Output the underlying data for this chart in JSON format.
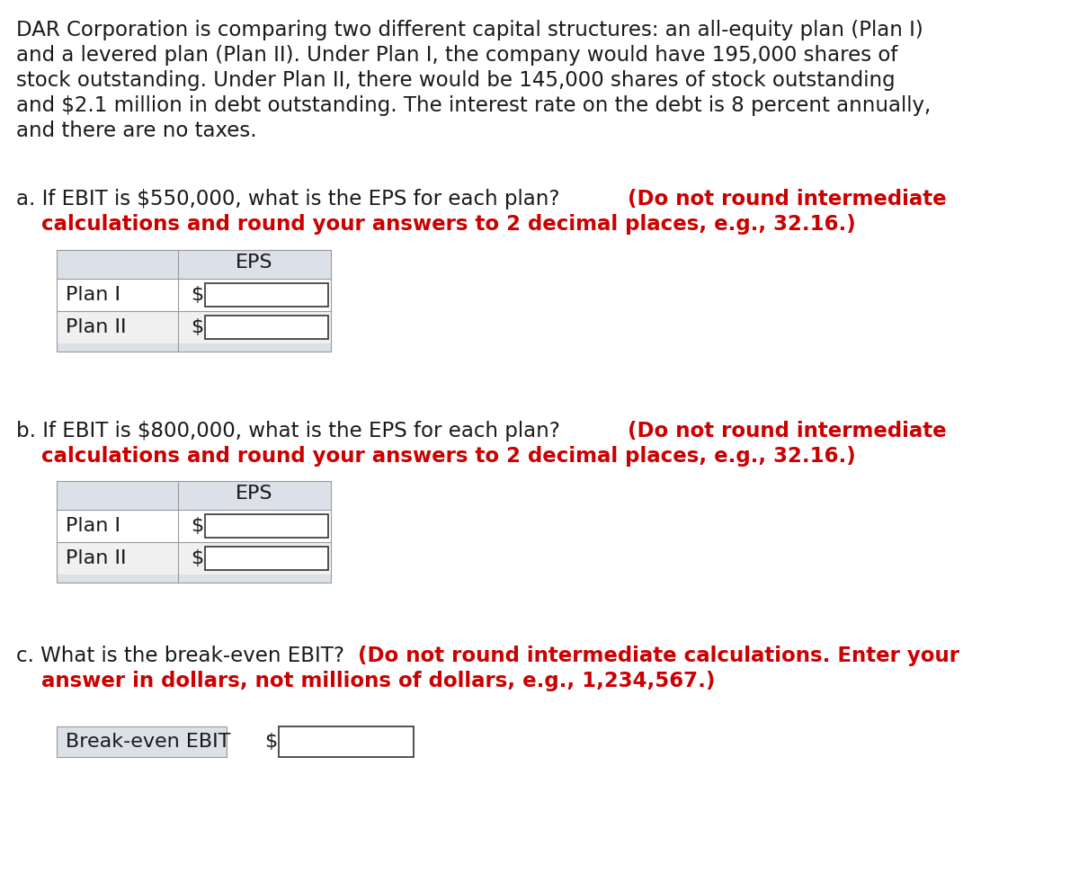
{
  "bg_color": "#ffffff",
  "text_color": "#1a1a1a",
  "red_color": "#cc0000",
  "light_gray": "#dce0e8",
  "white": "#ffffff",
  "para_line1": "DAR Corporation is comparing two different capital structures: an all-equity plan (Plan I)",
  "para_line2": "and a levered plan (Plan II). Under Plan I, the company would have 195,000 shares of",
  "para_line3": "stock outstanding. Under Plan II, there would be 145,000 shares of stock outstanding",
  "para_line4": "and $2.1 million in debt outstanding. The interest rate on the debt is 8 percent annually,",
  "para_line5": "and there are no taxes.",
  "a_black": "a. If EBIT is $550,000, what is the EPS for each plan? ",
  "a_red": "(Do not round intermediate",
  "a_red2": "calculations and round your answers to 2 decimal places, e.g., 32.16.)",
  "b_black": "b. If EBIT is $800,000, what is the EPS for each plan? ",
  "b_red": "(Do not round intermediate",
  "b_red2": "calculations and round your answers to 2 decimal places, e.g., 32.16.)",
  "c_black": "c. What is the break-even EBIT? ",
  "c_red": "(Do not round intermediate calculations. Enter your",
  "c_red2": "answer in dollars, not millions of dollars, e.g., 1,234,567.)",
  "eps_label": "EPS",
  "plan_i": "Plan I",
  "plan_ii": "Plan II",
  "dollar": "$",
  "break_even_label": "Break-even EBIT",
  "font_size_body": 16.5,
  "font_size_table": 16,
  "figw": 12.0,
  "figh": 9.81,
  "dpi": 100
}
